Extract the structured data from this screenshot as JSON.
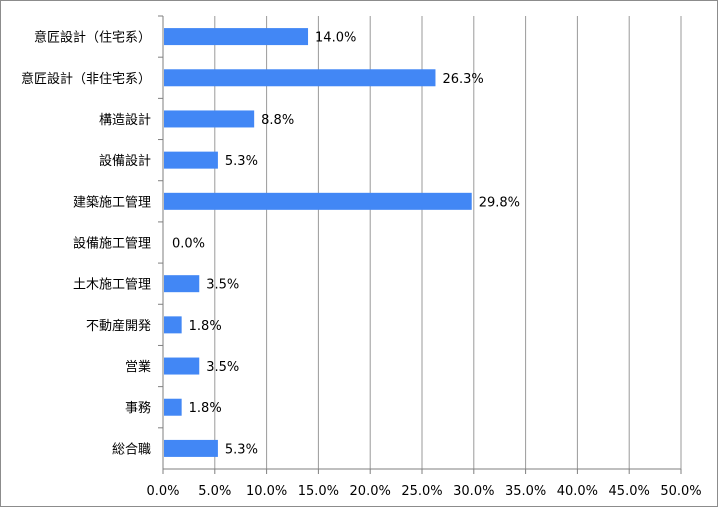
{
  "chart_data": {
    "type": "bar",
    "orientation": "horizontal",
    "categories": [
      "意匠設計（住宅系）",
      "意匠設計（非住宅系）",
      "構造設計",
      "設備設計",
      "建築施工管理",
      "設備施工管理",
      "土木施工管理",
      "不動産開発",
      "営業",
      "事務",
      "総合職"
    ],
    "values": [
      14.0,
      26.3,
      8.8,
      5.3,
      29.8,
      0.0,
      3.5,
      1.8,
      3.5,
      1.8,
      5.3
    ],
    "value_labels": [
      "14.0%",
      "26.3%",
      "8.8%",
      "5.3%",
      "29.8%",
      "0.0%",
      "3.5%",
      "1.8%",
      "3.5%",
      "1.8%",
      "5.3%"
    ],
    "xlim": [
      0,
      50
    ],
    "xticks": [
      0,
      5,
      10,
      15,
      20,
      25,
      30,
      35,
      40,
      45,
      50
    ],
    "xtick_labels": [
      "0.0%",
      "5.0%",
      "10.0%",
      "15.0%",
      "20.0%",
      "25.0%",
      "30.0%",
      "35.0%",
      "40.0%",
      "45.0%",
      "50.0%"
    ],
    "grid": "vertical",
    "bar_color": "#4287f5",
    "grid_color": "#9a9a9a",
    "title": "",
    "xlabel": "",
    "ylabel": ""
  }
}
